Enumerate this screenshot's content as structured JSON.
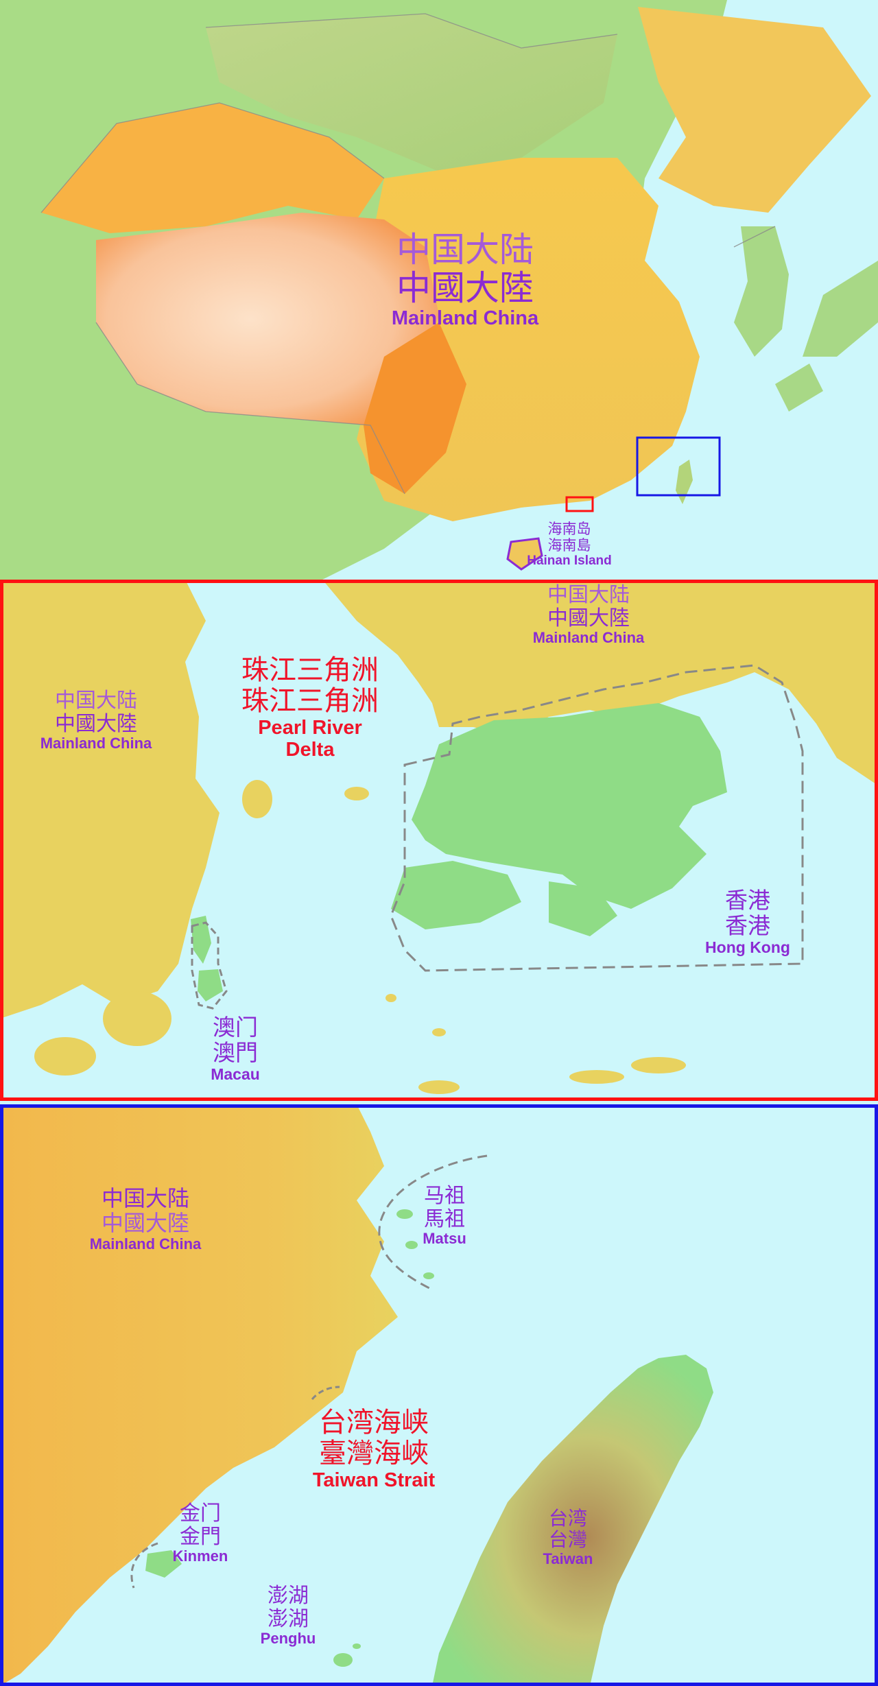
{
  "overview": {
    "mainland": {
      "simplified": "中国大陆",
      "traditional": "中國大陸",
      "english": "Mainland China"
    },
    "hainan": {
      "simplified": "海南岛",
      "traditional": "海南島",
      "english": "Hainan Island"
    }
  },
  "pearl_river_delta": {
    "mainland_top": {
      "simplified": "中国大陆",
      "traditional": "中國大陸",
      "english": "Mainland China"
    },
    "mainland_left": {
      "simplified": "中国大陆",
      "traditional": "中國大陸",
      "english": "Mainland China"
    },
    "delta": {
      "simplified": "珠江三角洲",
      "traditional": "珠江三角洲",
      "english_line1": "Pearl River",
      "english_line2": "Delta"
    },
    "hong_kong": {
      "simplified": "香港",
      "traditional": "香港",
      "english": "Hong Kong"
    },
    "macau": {
      "simplified": "澳门",
      "traditional": "澳門",
      "english": "Macau"
    }
  },
  "taiwan_strait_panel": {
    "mainland": {
      "simplified": "中国大陆",
      "traditional": "中國大陸",
      "english": "Mainland China"
    },
    "matsu": {
      "simplified": "马祖",
      "traditional": "馬祖",
      "english": "Matsu"
    },
    "strait": {
      "simplified": "台湾海峡",
      "traditional": "臺灣海峽",
      "english": "Taiwan Strait"
    },
    "kinmen": {
      "simplified": "金门",
      "traditional": "金門",
      "english": "Kinmen"
    },
    "penghu": {
      "simplified": "澎湖",
      "traditional": "澎湖",
      "english": "Penghu"
    },
    "taiwan": {
      "simplified": "台湾",
      "traditional": "台灣",
      "english": "Taiwan"
    }
  },
  "colors": {
    "sea": "#cdf7fb",
    "inset_frame_prd": "#ff1212",
    "inset_frame_taiwan": "#1717e6",
    "land_low": "#8fdc86",
    "land_mainland_inset": "#e8d25f",
    "plateau": "#f7b07a",
    "label_purple": "#8b2bd3",
    "label_red": "#f0142a"
  }
}
